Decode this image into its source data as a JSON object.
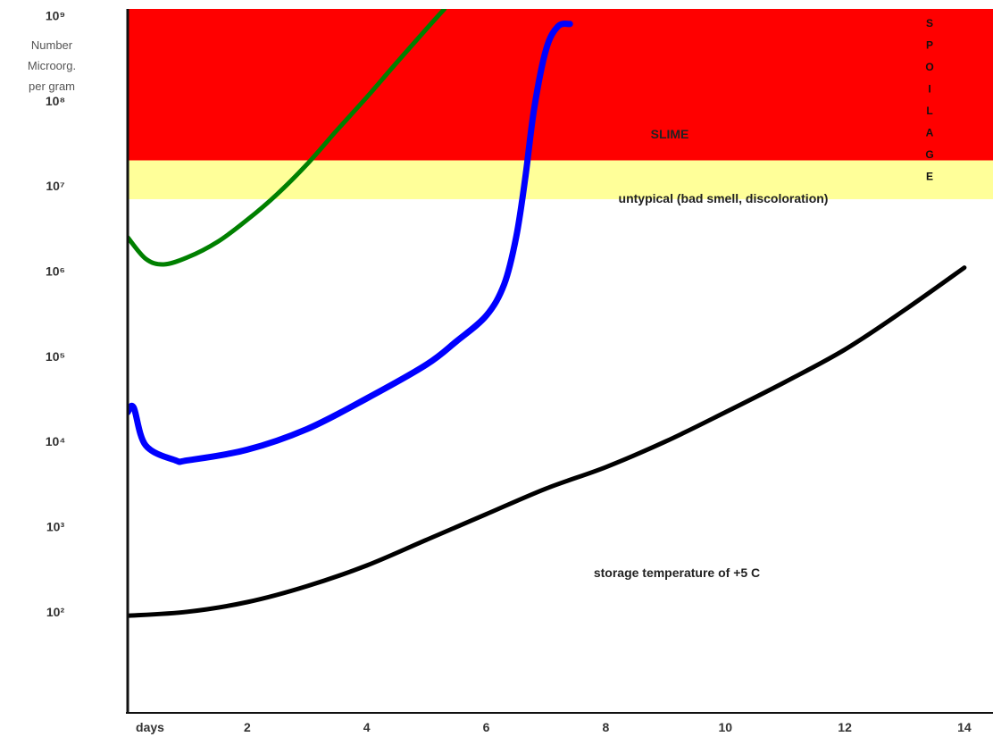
{
  "chart_data": {
    "type": "line",
    "y_scale": "log",
    "ylabel_lines": [
      "Number",
      "Microorg.",
      "per gram"
    ],
    "xlabel_left": "days",
    "x_ticks": [
      {
        "value": 2,
        "label": "2"
      },
      {
        "value": 4,
        "label": "4"
      },
      {
        "value": 6,
        "label": "6"
      },
      {
        "value": 8,
        "label": "8"
      },
      {
        "value": 10,
        "label": "10"
      },
      {
        "value": 12,
        "label": "12"
      },
      {
        "value": 14,
        "label": "14"
      }
    ],
    "y_ticks": [
      {
        "value": 100,
        "label": "10²"
      },
      {
        "value": 1000,
        "label": "10³"
      },
      {
        "value": 10000,
        "label": "10⁴"
      },
      {
        "value": 100000,
        "label": "10⁵"
      },
      {
        "value": 1000000,
        "label": "10⁶"
      },
      {
        "value": 10000000,
        "label": "10⁷"
      },
      {
        "value": 100000000,
        "label": "10⁸"
      },
      {
        "value": 1000000000,
        "label": "10⁹"
      }
    ],
    "xlim": [
      0,
      14.3
    ],
    "ylim": [
      6.5,
      1200000000
    ],
    "bands": [
      {
        "label": "SLIME",
        "from": 20000000,
        "to": 1200000000,
        "color": "#ff0000"
      },
      {
        "label": "untypical (bad smell, discoloration)",
        "from": 7000000,
        "to": 20000000,
        "color": "#ffff99"
      }
    ],
    "vertical_label": [
      "S",
      "P",
      "O",
      "I",
      "L",
      "A",
      "G",
      "E"
    ],
    "annotation": "storage temperature of +5 C",
    "series": [
      {
        "color": "#008000",
        "points": [
          [
            0,
            2500000
          ],
          [
            0.3,
            1400000
          ],
          [
            0.6,
            1200000
          ],
          [
            1,
            1450000
          ],
          [
            1.5,
            2200000
          ],
          [
            2,
            4000000
          ],
          [
            2.5,
            8000000
          ],
          [
            3,
            18000000
          ],
          [
            3.5,
            45000000
          ],
          [
            4,
            110000000
          ],
          [
            4.5,
            280000000
          ],
          [
            5,
            700000000
          ],
          [
            5.3,
            1200000000
          ]
        ]
      },
      {
        "color": "#0000ff",
        "points": [
          [
            0,
            22000
          ],
          [
            0.1,
            25000
          ],
          [
            0.3,
            9000
          ],
          [
            0.8,
            6000
          ],
          [
            1,
            6000
          ],
          [
            2,
            8000
          ],
          [
            3,
            14000
          ],
          [
            4,
            32000
          ],
          [
            5,
            80000
          ],
          [
            5.5,
            150000
          ],
          [
            6,
            300000
          ],
          [
            6.3,
            700000
          ],
          [
            6.5,
            2500000
          ],
          [
            6.65,
            12000000
          ],
          [
            6.8,
            80000000
          ],
          [
            7,
            400000000
          ],
          [
            7.2,
            750000000
          ],
          [
            7.4,
            800000000
          ]
        ]
      },
      {
        "color": "#000000",
        "points": [
          [
            0,
            90
          ],
          [
            1,
            100
          ],
          [
            2,
            130
          ],
          [
            3,
            200
          ],
          [
            4,
            350
          ],
          [
            5,
            700
          ],
          [
            6,
            1400
          ],
          [
            7,
            2800
          ],
          [
            8,
            5000
          ],
          [
            9,
            10000
          ],
          [
            10,
            22000
          ],
          [
            11,
            50000
          ],
          [
            12,
            120000
          ],
          [
            13,
            350000
          ],
          [
            14,
            1100000
          ]
        ]
      }
    ]
  }
}
